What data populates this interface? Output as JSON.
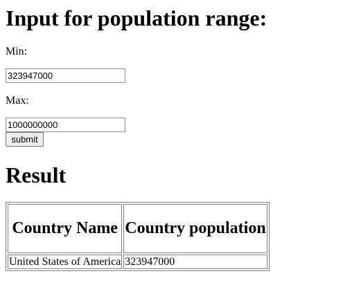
{
  "form": {
    "title": "Input for population range:",
    "min_label": "Min:",
    "min_value": "323947000",
    "max_label": "Max:",
    "max_value": "1000000000",
    "submit_label": "submit"
  },
  "result": {
    "heading": "Result",
    "columns": [
      "Country Name",
      "Country population"
    ],
    "rows": [
      [
        "United States of America",
        "323947000"
      ]
    ]
  }
}
